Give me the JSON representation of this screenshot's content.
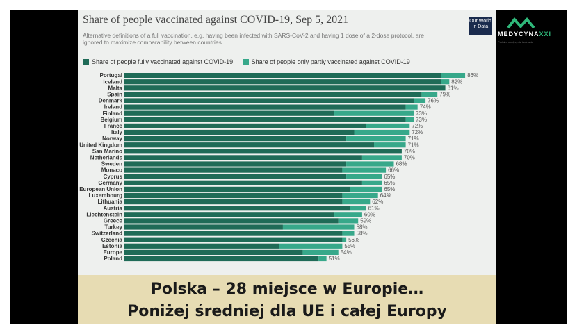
{
  "chart_data": {
    "type": "bar",
    "orientation": "horizontal",
    "stacked": true,
    "title": "Share of people vaccinated against COVID-19, Sep 5, 2021",
    "subtitle": "Alternative definitions of a full vaccination, e.g. having been infected with SARS-CoV-2 and having 1 dose of a 2-dose protocol, are ignored to maximize comparability between countries.",
    "source_logo": "Our World in Data",
    "xlim": [
      0,
      100
    ],
    "categories": [
      "Portugal",
      "Iceland",
      "Malta",
      "Spain",
      "Denmark",
      "Ireland",
      "Finland",
      "Belgium",
      "France",
      "Italy",
      "Norway",
      "United Kingdom",
      "San Marino",
      "Netherlands",
      "Sweden",
      "Monaco",
      "Cyprus",
      "Germany",
      "European Union",
      "Luxembourg",
      "Lithuania",
      "Austria",
      "Liechtenstein",
      "Greece",
      "Turkey",
      "Switzerland",
      "Czechia",
      "Estonia",
      "Europe",
      "Poland"
    ],
    "total_labels": [
      "86%",
      "82%",
      "81%",
      "79%",
      "76%",
      "74%",
      "73%",
      "73%",
      "72%",
      "72%",
      "71%",
      "71%",
      "70%",
      "70%",
      "68%",
      "66%",
      "65%",
      "65%",
      "65%",
      "64%",
      "62%",
      "61%",
      "60%",
      "59%",
      "58%",
      "58%",
      "56%",
      "55%",
      "54%",
      "51%"
    ],
    "series": [
      {
        "name": "Share of people fully vaccinated against COVID-19",
        "color": "#1f6b57",
        "values": [
          80,
          80,
          81,
          75,
          73,
          71,
          53,
          71,
          61,
          58,
          56,
          63,
          70,
          60,
          56,
          55,
          56,
          60,
          57,
          55,
          55,
          57,
          53,
          54,
          40,
          55,
          55,
          39,
          45,
          49
        ]
      },
      {
        "name": "Share of people only partly vaccinated against COVID-19",
        "color": "#37a88a",
        "values": [
          6,
          2,
          0,
          4,
          3,
          3,
          20,
          2,
          11,
          14,
          15,
          8,
          0,
          10,
          12,
          11,
          9,
          5,
          8,
          9,
          7,
          4,
          7,
          5,
          18,
          3,
          1,
          16,
          9,
          2
        ]
      }
    ]
  },
  "caption": {
    "line1": "Polska – 28 miejsce w Europie…",
    "line2": "Poniżej średniej dla UE i całej Europy"
  },
  "brand": {
    "name_main": "MEDYCYNA",
    "name_accent": "XXI",
    "tagline": "Portal o medycynie i zdrowiu"
  }
}
